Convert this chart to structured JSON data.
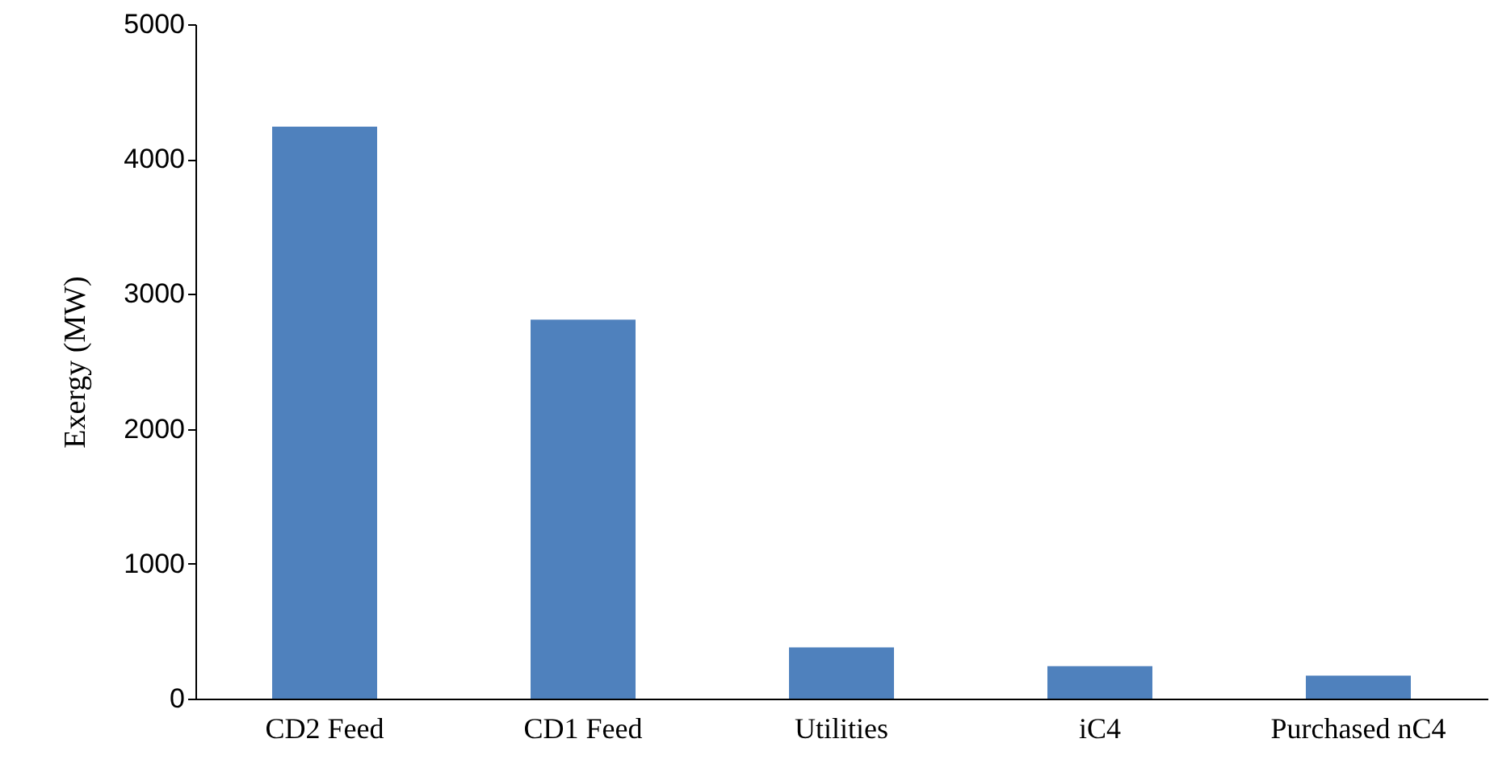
{
  "chart_data": {
    "type": "bar",
    "ylabel": "Exergy (MW)",
    "categories": [
      "CD2 Feed",
      "CD1 Feed",
      "Utilities",
      "iC4",
      "Purchased nC4"
    ],
    "values": [
      4240,
      2810,
      380,
      240,
      170
    ],
    "color": "#4f81bd",
    "ylim": [
      0,
      5000
    ],
    "yticks": [
      0,
      1000,
      2000,
      3000,
      4000,
      5000
    ],
    "grid": false
  }
}
